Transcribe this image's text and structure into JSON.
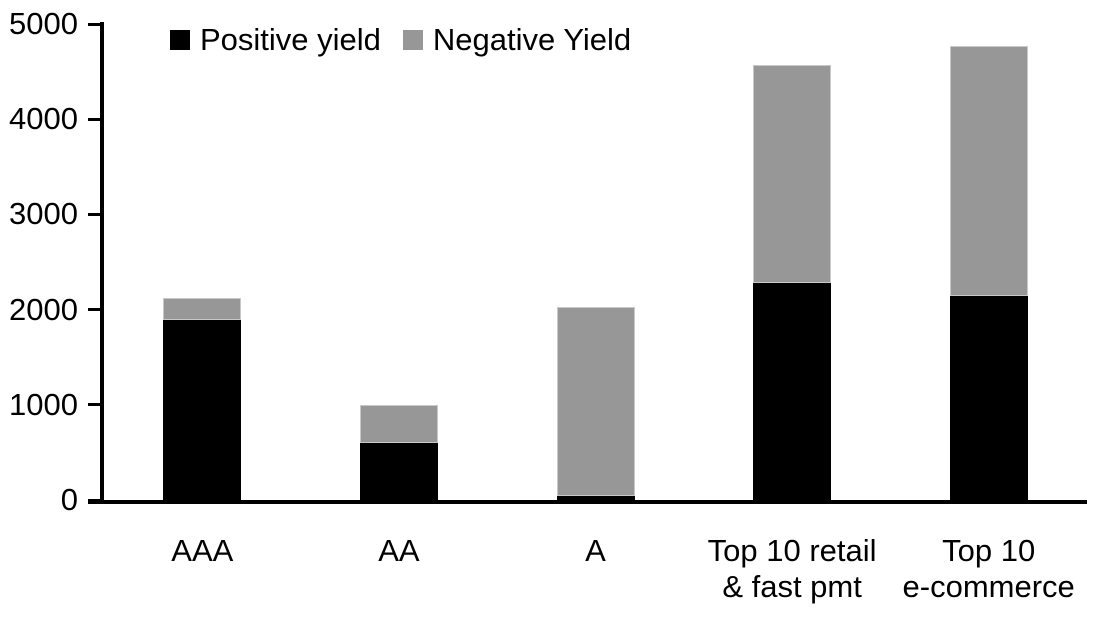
{
  "chart_data": {
    "type": "bar",
    "stacked": true,
    "title": "",
    "categories": [
      {
        "label": "AAA",
        "lines": [
          "AAA"
        ]
      },
      {
        "label": "AA",
        "lines": [
          "AA"
        ]
      },
      {
        "label": "A",
        "lines": [
          "A"
        ]
      },
      {
        "label": "Top 10 retail & fast pmt",
        "lines": [
          "Top 10 retail",
          "& fast pmt"
        ]
      },
      {
        "label": "Top 10 e-commerce",
        "lines": [
          "Top 10",
          "e-commerce"
        ]
      }
    ],
    "series": [
      {
        "name": "Positive yield",
        "color": "#000000",
        "values": [
          1890,
          600,
          40,
          2280,
          2140
        ]
      },
      {
        "name": "Negative Yield",
        "color": "#979797",
        "values": [
          230,
          400,
          1990,
          2290,
          2630
        ]
      }
    ],
    "totals": [
      2120,
      1000,
      2030,
      4570,
      4770
    ],
    "ylim": [
      0,
      5000
    ],
    "yticks": [
      0,
      1000,
      2000,
      3000,
      4000,
      5000
    ],
    "xlabel": "",
    "ylabel": "",
    "legend_position": "top-left",
    "grid": false,
    "axis_color": "#000000",
    "background": "#ffffff"
  }
}
